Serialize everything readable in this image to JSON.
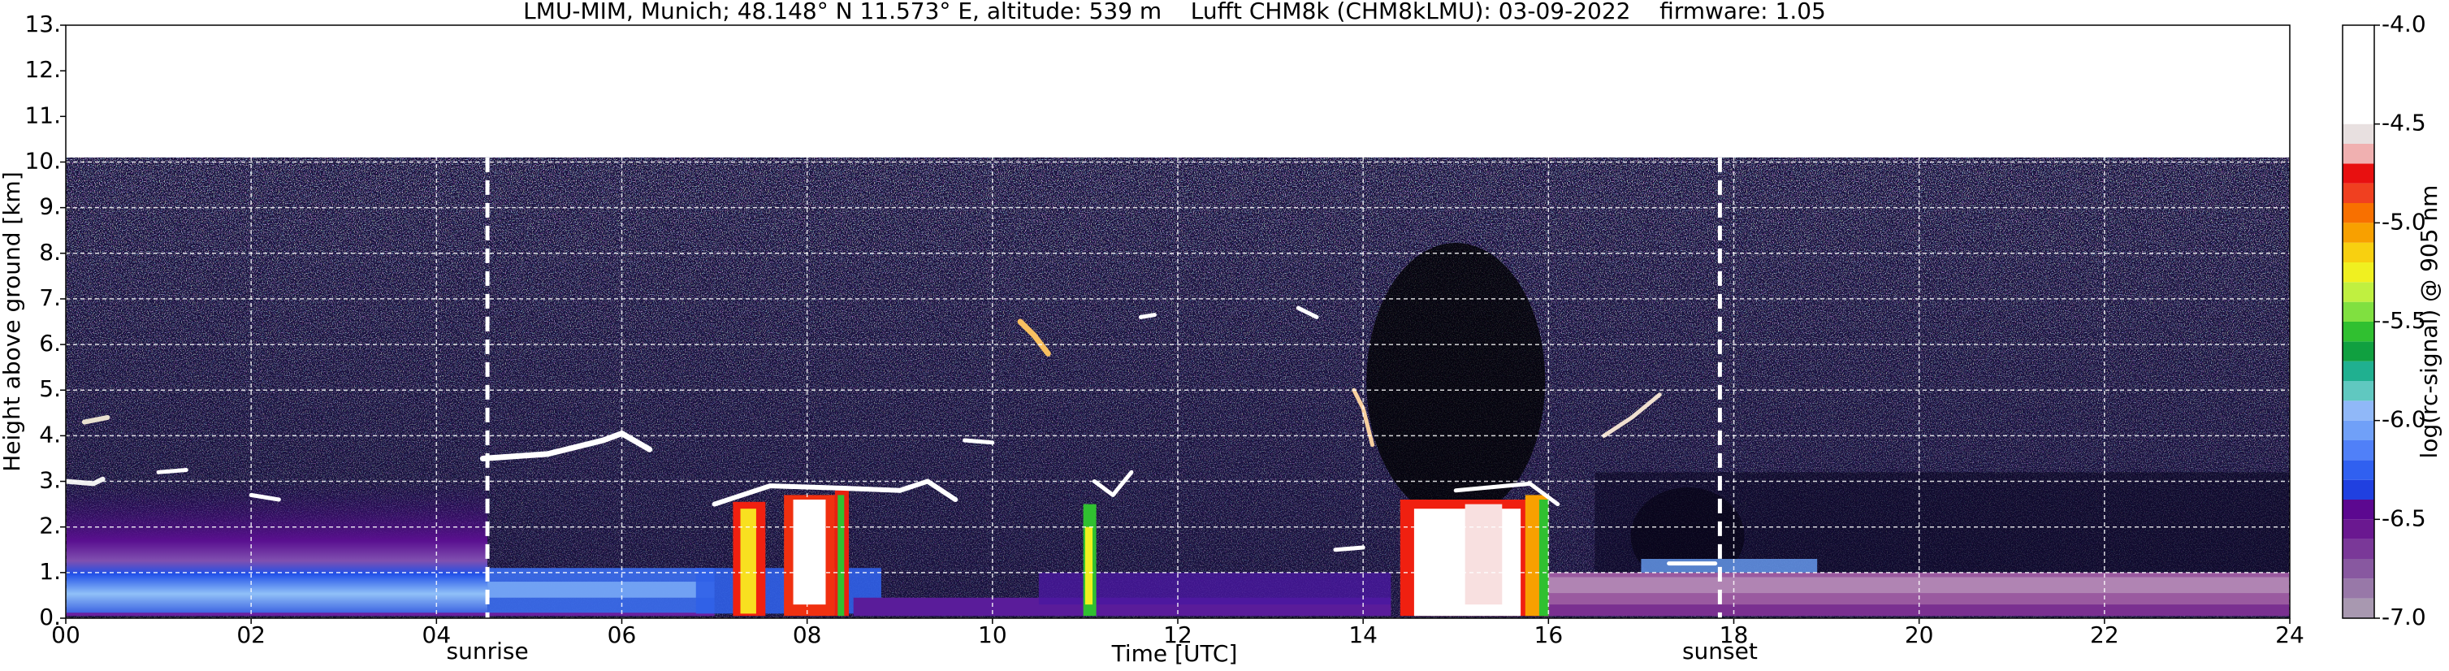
{
  "chart_data": {
    "type": "heatmap",
    "title": "LMU-MIM, Munich; 48.148° N 11.573° E, altitude: 539 m    Lufft CHM8k (CHM8kLMU): 03-09-2022    firmware: 1.05",
    "xlabel": "Time [UTC]",
    "ylabel": "Height above ground [km]",
    "xlim": [
      0,
      24
    ],
    "ylim": [
      0,
      13
    ],
    "xticks": [
      {
        "value": 0,
        "label": "00"
      },
      {
        "value": 2,
        "label": "02"
      },
      {
        "value": 4,
        "label": "04"
      },
      {
        "value": 6,
        "label": "06"
      },
      {
        "value": 8,
        "label": "08"
      },
      10,
      12,
      14,
      16,
      18,
      20,
      22,
      24
    ],
    "yticks": [
      {
        "value": 0,
        "label": "0."
      },
      {
        "value": 1,
        "label": "1."
      },
      {
        "value": 2,
        "label": "2."
      },
      {
        "value": 3,
        "label": "3."
      },
      {
        "value": 4,
        "label": "4."
      },
      {
        "value": 5,
        "label": "5."
      },
      {
        "value": 6,
        "label": "6."
      },
      {
        "value": 7,
        "label": "7."
      },
      {
        "value": 8,
        "label": "8."
      },
      {
        "value": 9,
        "label": "9."
      },
      {
        "value": 10,
        "label": "10."
      },
      {
        "value": 11,
        "label": "11."
      },
      {
        "value": 12,
        "label": "12."
      },
      {
        "value": 13,
        "label": "13."
      }
    ],
    "grid": true,
    "annotations": [
      {
        "text": "sunrise",
        "x": 4.55
      },
      {
        "text": "sunset",
        "x": 17.85
      }
    ],
    "colorbar": {
      "label": "log(rc-signal) @ 905 nm",
      "lim": [
        -7,
        -4
      ],
      "levels": [
        -7.0,
        -6.9,
        -6.8,
        -6.7,
        -6.6,
        -6.5,
        -6.4,
        -6.3,
        -6.2,
        -6.1,
        -6.0,
        -5.9,
        -5.8,
        -5.7,
        -5.6,
        -5.5,
        -5.4,
        -5.3,
        -5.2,
        -5.1,
        -5.0,
        -4.9,
        -4.8,
        -4.7,
        -4.6,
        -4.5,
        -4.0
      ],
      "colors": [
        "#a898b0",
        "#9878a8",
        "#8858a0",
        "#7a3898",
        "#6a1890",
        "#5c0890",
        "#2040e0",
        "#3060f0",
        "#5080f8",
        "#70a0f8",
        "#90b8f8",
        "#60c8c0",
        "#20b090",
        "#10a040",
        "#30c030",
        "#80e040",
        "#c0f040",
        "#f0f020",
        "#f8d010",
        "#f8a000",
        "#f87000",
        "#f04020",
        "#e81010",
        "#f0b0b0",
        "#e8e0e0",
        "#ffffff"
      ],
      "ticks": [
        {
          "value": -7,
          "label": "-7.0"
        },
        {
          "value": -6.5,
          "label": "-6.5"
        },
        {
          "value": -6,
          "label": "-6.0"
        },
        {
          "value": -5.5,
          "label": "-5.5"
        },
        {
          "value": -5,
          "label": "-5.0"
        },
        {
          "value": -4.5,
          "label": "-4.5"
        },
        {
          "value": -4,
          "label": "-4.0"
        }
      ]
    }
  }
}
